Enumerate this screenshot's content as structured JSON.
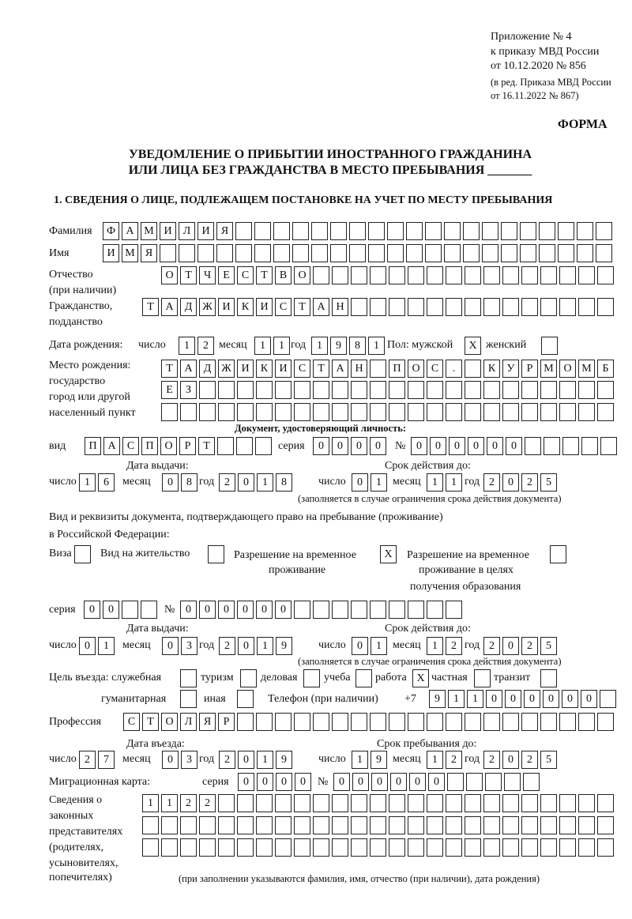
{
  "appendix": {
    "line1": "Приложение № 4",
    "line2": "к приказу МВД России",
    "line3": "от 10.12.2020 № 856",
    "line4": "(в ред. Приказа МВД России",
    "line5": "от 16.11.2022 № 867)"
  },
  "form_label": "ФОРМА",
  "title": {
    "line1": "УВЕДОМЛЕНИЕ О ПРИБЫТИИ ИНОСТРАННОГО ГРАЖДАНИНА",
    "line2": "ИЛИ ЛИЦА БЕЗ ГРАЖДАНСТВА В МЕСТО ПРЕБЫВАНИЯ _______"
  },
  "section1": "1. СВЕДЕНИЯ О ЛИЦЕ, ПОДЛЕЖАЩЕМ ПОСТАНОВКЕ НА УЧЕТ ПО МЕСТУ ПРЕБЫВАНИЯ",
  "labels": {
    "day": "число",
    "month": "месяц",
    "year": "год",
    "series": "серия",
    "number": "№",
    "issue_date": "Дата выдачи:",
    "valid_until": "Срок действия до:",
    "validity_note": "(заполняется в случае ограничения срока действия документа)"
  },
  "person": {
    "surname": {
      "label": "Фамилия",
      "value": "ФАМИЛИЯ"
    },
    "name": {
      "label": "Имя",
      "value": "ИМЯ"
    },
    "patronymic": {
      "label": "Отчество",
      "label2": "(при наличии)",
      "value": "ОТЧЕСТВО"
    },
    "citizenship": {
      "label": "Гражданство,",
      "label2": "подданство",
      "value": "ТАДЖИКИСТАН"
    },
    "birth_date": {
      "label": "Дата рождения:",
      "day": "12",
      "month": "11",
      "year": "1981"
    },
    "sex": {
      "label": "Пол: мужской",
      "male": "X",
      "female_label": "женский",
      "female": ""
    },
    "birth_place": {
      "label1": "Место рождения:",
      "label2": "государство",
      "label3": "город или другой",
      "label4": "населенный пункт",
      "line1": "ТАДЖИКИСТАН ПОС. КУРМОМБ",
      "line2": "ЕЗ",
      "line3": ""
    }
  },
  "identity_doc": {
    "heading": "Документ, удостоверяющий личность:",
    "type_label": "вид",
    "type": "ПАСПОРТ",
    "series": "0000",
    "number": "000000",
    "issue": {
      "day": "16",
      "month": "08",
      "year": "2018"
    },
    "valid": {
      "day": "01",
      "month": "11",
      "year": "2025"
    }
  },
  "stay_doc": {
    "heading1": "Вид и реквизиты документа, подтверждающего право на пребывание (проживание)",
    "heading2": "в Российской Федерации:",
    "visa_label": "Виза",
    "visa": "",
    "residence_label": "Вид на жительство",
    "residence": "",
    "temp_label1": "Разрешение на временное",
    "temp_label2": "проживание",
    "temp": "X",
    "edu_label1": "Разрешение на временное",
    "edu_label2": "проживание в целях",
    "edu_label3": "получения образования",
    "edu": "",
    "series": "00",
    "number": "000000",
    "issue": {
      "day": "01",
      "month": "03",
      "year": "2019"
    },
    "valid": {
      "day": "01",
      "month": "12",
      "year": "2025"
    }
  },
  "purpose": {
    "label": "Цель въезда: служебная",
    "service": "",
    "tourism_label": "туризм",
    "tourism": "",
    "business_label": "деловая",
    "business": "",
    "study_label": "учеба",
    "study": "",
    "work_label": "работа",
    "work": "X",
    "private_label": "частная",
    "private": "",
    "transit_label": "транзит",
    "transit": "",
    "humanitarian_label": "гуманитарная",
    "humanitarian": "",
    "other_label": "иная",
    "other": ""
  },
  "phone": {
    "label": "Телефон (при наличии)",
    "prefix": "+7",
    "value": "911000000"
  },
  "profession": {
    "label": "Профессия",
    "value": "СТОЛЯР"
  },
  "entry": {
    "entry_label": "Дата въезда:",
    "stay_label": "Срок пребывания до:",
    "entry_date": {
      "day": "27",
      "month": "03",
      "year": "2019"
    },
    "stay_until": {
      "day": "19",
      "month": "12",
      "year": "2025"
    }
  },
  "migration_card": {
    "label": "Миграционная карта:",
    "series": "0000",
    "number": "000000"
  },
  "representatives": {
    "label1": "Сведения о",
    "label2": "законных",
    "label3": "представителях",
    "label4": "(родителях,",
    "label5": "усыновителях,",
    "label6": "попечителях)",
    "line1": "1122",
    "line2": "",
    "line3": "",
    "note": "(при заполнении указываются фамилия, имя, отчество (при наличии), дата рождения)"
  }
}
